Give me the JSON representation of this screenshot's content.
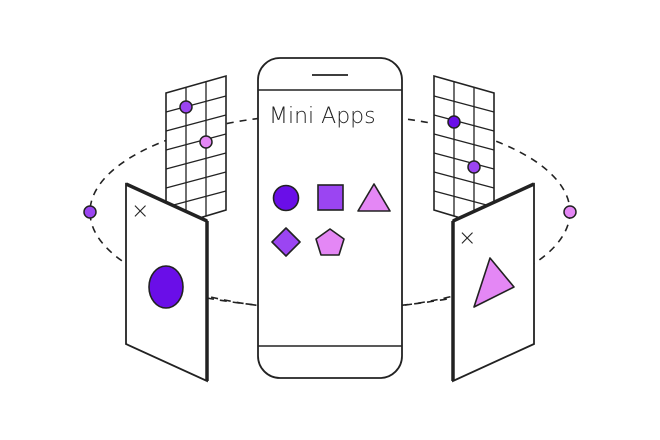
{
  "phone": {
    "title": "Mini Apps"
  },
  "colors": {
    "stroke": "#222222",
    "background": "#ffffff",
    "deep_purple": "#6a0ee8",
    "violet": "#9b45f2",
    "pink": "#e487f5",
    "light_pink": "#e58af5"
  },
  "shapes": [
    {
      "name": "circle-icon",
      "color": "deep_purple"
    },
    {
      "name": "square-icon",
      "color": "violet"
    },
    {
      "name": "triangle-icon",
      "color": "pink"
    },
    {
      "name": "diamond-icon",
      "color": "violet"
    },
    {
      "name": "pentagon-icon",
      "color": "pink"
    }
  ],
  "side_panels": [
    {
      "name": "left-card",
      "close_glyph": "×",
      "shape": "ellipse-icon",
      "color": "deep_purple"
    },
    {
      "name": "right-card",
      "close_glyph": "×",
      "shape": "triangle-icon",
      "color": "pink"
    }
  ],
  "orbit": {
    "style": "dashed",
    "node_colors": [
      "violet",
      "pink"
    ]
  }
}
